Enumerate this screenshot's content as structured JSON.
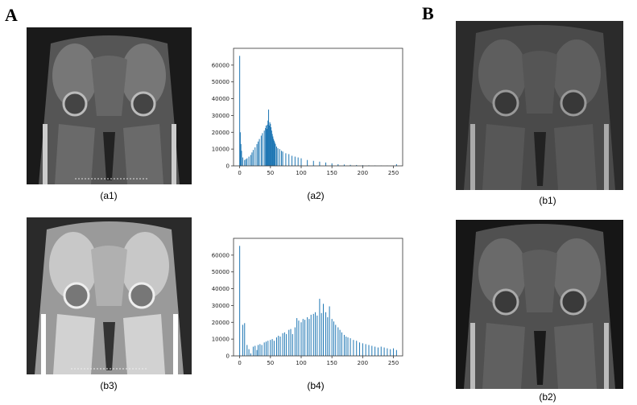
{
  "panel_labels": {
    "A": "A",
    "B": "B"
  },
  "captions": {
    "a1": "(a1)",
    "a2": "(a2)",
    "b3": "(b3)",
    "b4": "(b4)",
    "b1": "(b1)",
    "b2": "(b2)"
  },
  "colors": {
    "bar": "#1f77b4"
  },
  "chart_data": [
    {
      "id": "a2",
      "type": "bar",
      "title": "",
      "xlabel": "",
      "ylabel": "",
      "xlim": [
        -10,
        265
      ],
      "ylim": [
        0,
        70000
      ],
      "xticks": [
        0,
        50,
        100,
        150,
        200,
        250
      ],
      "yticks": [
        0,
        10000,
        20000,
        30000,
        40000,
        50000,
        60000
      ],
      "grid": false,
      "x": [
        0,
        1,
        2,
        3,
        5,
        8,
        10,
        12,
        15,
        18,
        20,
        22,
        25,
        28,
        30,
        32,
        35,
        37,
        40,
        42,
        43,
        44,
        45,
        46,
        47,
        48,
        49,
        50,
        51,
        52,
        53,
        54,
        55,
        56,
        57,
        58,
        60,
        62,
        65,
        68,
        70,
        75,
        80,
        85,
        90,
        95,
        100,
        110,
        120,
        130,
        140,
        150,
        160,
        170,
        180,
        190,
        200,
        210,
        220,
        230,
        240,
        250,
        255
      ],
      "values": [
        65500,
        20000,
        13000,
        9000,
        5000,
        3500,
        4000,
        4500,
        5500,
        6500,
        8000,
        9500,
        11000,
        13000,
        14500,
        16000,
        18000,
        19500,
        21000,
        22500,
        24000,
        22000,
        24500,
        27000,
        33500,
        24000,
        26000,
        25000,
        23000,
        21000,
        19000,
        17500,
        16000,
        15000,
        14000,
        13000,
        11500,
        10500,
        10000,
        9000,
        8500,
        7500,
        7000,
        6000,
        5500,
        5000,
        4500,
        3500,
        3000,
        2500,
        2000,
        1500,
        1000,
        800,
        600,
        500,
        400,
        300,
        250,
        200,
        150,
        100,
        1000
      ]
    },
    {
      "id": "b4",
      "type": "bar",
      "title": "",
      "xlabel": "",
      "ylabel": "",
      "xlim": [
        -10,
        265
      ],
      "ylim": [
        0,
        70000
      ],
      "xticks": [
        0,
        50,
        100,
        150,
        200,
        250
      ],
      "yticks": [
        0,
        10000,
        20000,
        30000,
        40000,
        50000,
        60000
      ],
      "grid": false,
      "x": [
        0,
        5,
        8,
        12,
        15,
        18,
        22,
        25,
        28,
        30,
        33,
        36,
        40,
        43,
        46,
        50,
        53,
        56,
        60,
        63,
        66,
        70,
        73,
        76,
        80,
        83,
        86,
        90,
        93,
        96,
        100,
        103,
        106,
        110,
        113,
        116,
        120,
        123,
        126,
        130,
        133,
        136,
        140,
        143,
        146,
        150,
        153,
        156,
        160,
        163,
        166,
        170,
        173,
        176,
        180,
        185,
        190,
        195,
        200,
        205,
        210,
        215,
        220,
        225,
        230,
        235,
        240,
        245,
        250,
        255
      ],
      "values": [
        65500,
        18500,
        19500,
        6500,
        4000,
        1500,
        5500,
        6000,
        3500,
        6500,
        7000,
        6500,
        8000,
        8500,
        9000,
        9500,
        10000,
        9000,
        11000,
        12000,
        11500,
        13500,
        14000,
        13000,
        15500,
        16000,
        13000,
        17000,
        22500,
        21000,
        20000,
        22000,
        21500,
        23000,
        22000,
        24500,
        25000,
        26000,
        24000,
        34000,
        25500,
        31000,
        26000,
        23000,
        29500,
        22000,
        20500,
        18500,
        17000,
        15500,
        14000,
        12500,
        11500,
        11000,
        10500,
        9500,
        9000,
        8000,
        7500,
        7000,
        6500,
        6000,
        5500,
        5000,
        5500,
        5000,
        4500,
        4000,
        4500,
        3500
      ]
    }
  ]
}
